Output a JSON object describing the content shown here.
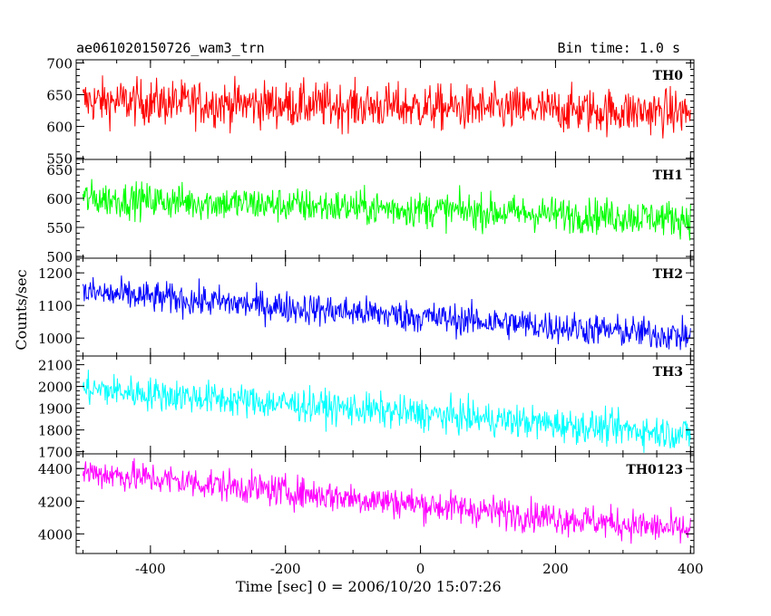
{
  "header": {
    "title": "ae061020150726_wam3_trn",
    "bin_time": "Bin time: 1.0 s"
  },
  "chart_data": {
    "type": "line",
    "xlabel": "Time [sec] 0 = 2006/10/20 15:07:26",
    "ylabel": "Counts/sec",
    "xlim": [
      -510,
      405
    ],
    "x_ticks": [
      -400,
      -200,
      0,
      200,
      400
    ],
    "x_range": [
      -500,
      400
    ],
    "bin_time_s": 1.0,
    "panels": [
      {
        "name": "TH0",
        "color": "#ff0000",
        "ylim": [
          548,
          705
        ],
        "y_ticks": [
          550,
          600,
          650,
          700
        ],
        "start": 640,
        "end": 622,
        "noise": 33
      },
      {
        "name": "TH1",
        "color": "#00ff00",
        "ylim": [
          497,
          667
        ],
        "y_ticks": [
          500,
          550,
          600,
          650
        ],
        "start": 600,
        "end": 565,
        "noise": 28
      },
      {
        "name": "TH2",
        "color": "#0000ff",
        "ylim": [
          945,
          1245
        ],
        "y_ticks": [
          1000,
          1100,
          1200
        ],
        "start": 1140,
        "end": 1005,
        "noise": 45
      },
      {
        "name": "TH3",
        "color": "#00ffff",
        "ylim": [
          1690,
          2140
        ],
        "y_ticks": [
          1700,
          1800,
          1900,
          2000,
          2100
        ],
        "start": 1990,
        "end": 1780,
        "noise": 70
      },
      {
        "name": "TH0123",
        "color": "#ff00ff",
        "ylim": [
          3880,
          4490
        ],
        "y_ticks": [
          4000,
          4200,
          4400
        ],
        "start": 4380,
        "end": 4020,
        "noise": 90
      }
    ]
  }
}
